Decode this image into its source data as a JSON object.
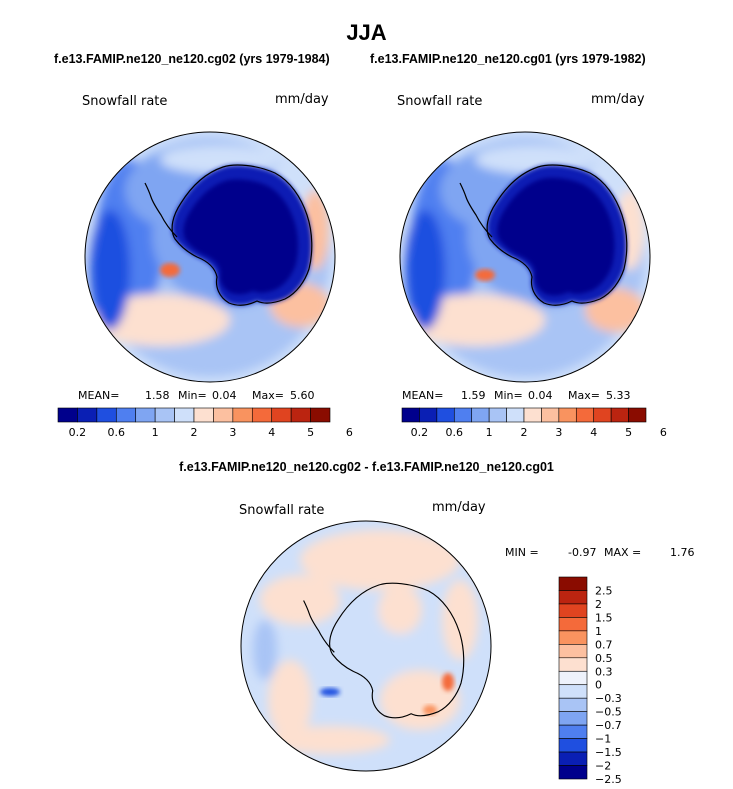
{
  "page": {
    "title": "JJA",
    "subtitle_left": "f.e13.FAMIP.ne120_ne120.cg02 (yrs 1979-1984)",
    "subtitle_right": "f.e13.FAMIP.ne120_ne120.cg01 (yrs 1979-1982)",
    "diff_title": "f.e13.FAMIP.ne120_ne120.cg02 - f.e13.FAMIP.ne120_ne120.cg01"
  },
  "colors": {
    "abs_palette": [
      "#00008c",
      "#0a1fb4",
      "#1f4fe0",
      "#4f7ff0",
      "#7fa5f2",
      "#a9c4f5",
      "#cfe0fa",
      "#fde0d0",
      "#fcc0a0",
      "#f9935f",
      "#f46a3a",
      "#e04420",
      "#bb2410",
      "#8a0c00"
    ],
    "diff_palette": [
      "#00008c",
      "#0a1fb4",
      "#1f4fe0",
      "#4f7ff0",
      "#7fa5f2",
      "#a9c4f5",
      "#cfe0fa",
      "#eef2fb",
      "#fde0d0",
      "#fcc0a0",
      "#f9935f",
      "#f46a3a",
      "#e04420",
      "#bb2410",
      "#8a0c00"
    ]
  },
  "chart_data": [
    {
      "type": "heatmap",
      "panel": "left",
      "variable": "Snowfall rate",
      "units": "mm/day",
      "stats": {
        "mean_label": "MEAN=",
        "mean": "1.58",
        "min_label": "Min=",
        "min": "0.04",
        "max_label": "Max=",
        "max": "5.60"
      },
      "colorbar_ticks": [
        "0.2",
        "0.6",
        "1",
        "2",
        "3",
        "4",
        "5",
        "6"
      ],
      "projection": "south polar stereographic"
    },
    {
      "type": "heatmap",
      "panel": "right",
      "variable": "Snowfall rate",
      "units": "mm/day",
      "stats": {
        "mean_label": "MEAN=",
        "mean": "1.59",
        "min_label": "Min=",
        "min": "0.04",
        "max_label": "Max=",
        "max": "5.33"
      },
      "colorbar_ticks": [
        "0.2",
        "0.6",
        "1",
        "2",
        "3",
        "4",
        "5",
        "6"
      ],
      "projection": "south polar stereographic"
    },
    {
      "type": "heatmap",
      "panel": "difference",
      "variable": "Snowfall rate",
      "units": "mm/day",
      "stats": {
        "min_label": "MIN =",
        "min": "-0.97",
        "max_label": "MAX =",
        "max": "1.76"
      },
      "colorbar_ticks": [
        "2.5",
        "2",
        "1.5",
        "1",
        "0.7",
        "0.5",
        "0.3",
        "0",
        "−0.3",
        "−0.5",
        "−0.7",
        "−1",
        "−1.5",
        "−2",
        "−2.5"
      ],
      "projection": "south polar stereographic"
    }
  ]
}
